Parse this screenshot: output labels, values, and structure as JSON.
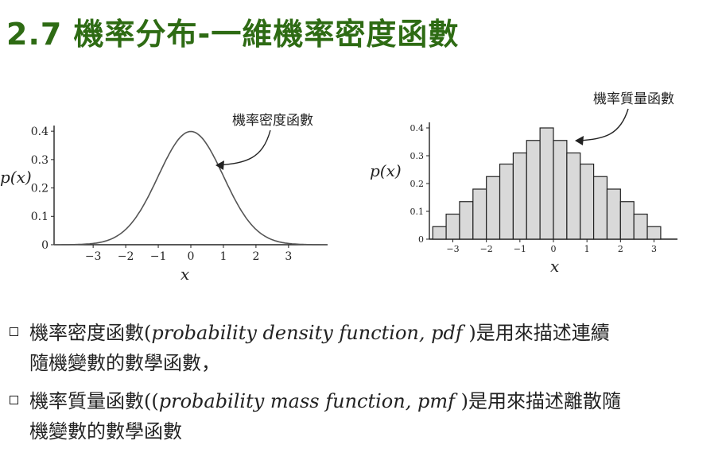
{
  "slide": {
    "title": "2.7 機率分布-一維機率密度函數"
  },
  "bullets": [
    {
      "pre": "機率密度函數(",
      "italic": "probability density function, pdf ",
      "post": ")是用來描述連續",
      "line2": "隨機變數的數學函數，"
    },
    {
      "pre": "機率質量函數((",
      "italic": "probability mass function, pmf ",
      "post": ")是用來描述離散隨",
      "line2": "機變數的數學函數"
    }
  ],
  "chart_data": [
    {
      "type": "line",
      "annotation": "機率密度函數",
      "ylabel": "p(x)",
      "xlabel": "x",
      "xlim": [
        -4.2,
        4.2
      ],
      "ylim": [
        0,
        0.42
      ],
      "xticks": [
        "−3",
        "−2",
        "−1",
        "0",
        "1",
        "2",
        "3"
      ],
      "xtick_values": [
        -3,
        -2,
        -1,
        0,
        1,
        2,
        3
      ],
      "yticks": [
        "0",
        "0.1",
        "0.2",
        "0.3",
        "0.4"
      ],
      "ytick_values": [
        0,
        0.1,
        0.2,
        0.3,
        0.4
      ],
      "curve": "standard normal density",
      "color": "#555555"
    },
    {
      "type": "bar",
      "annotation": "機率質量函數",
      "ylabel": "p(x)",
      "xlabel": "x",
      "xlim": [
        -3.7,
        3.7
      ],
      "ylim": [
        0,
        0.42
      ],
      "xticks": [
        "−3",
        "−2",
        "−1",
        "0",
        "1",
        "2",
        "3"
      ],
      "xtick_values": [
        -3,
        -2,
        -1,
        0,
        1,
        2,
        3
      ],
      "yticks": [
        "0",
        "0.1",
        "0.2",
        "0.3",
        "0.4"
      ],
      "ytick_values": [
        0,
        0.1,
        0.2,
        0.3,
        0.4
      ],
      "bar_width": 0.4,
      "x": [
        -3.4,
        -3.0,
        -2.6,
        -2.2,
        -1.8,
        -1.4,
        -1.0,
        -0.6,
        -0.2,
        0.2,
        0.6,
        1.0,
        1.4,
        1.8,
        2.2,
        2.6,
        3.0,
        3.4
      ],
      "values": [
        0.045,
        0.09,
        0.135,
        0.18,
        0.225,
        0.27,
        0.31,
        0.355,
        0.4,
        0.355,
        0.31,
        0.27,
        0.225,
        0.18,
        0.135,
        0.09,
        0.045,
        0.0
      ],
      "bar_color": "#d9d9d9",
      "edge_color": "#222222"
    }
  ]
}
